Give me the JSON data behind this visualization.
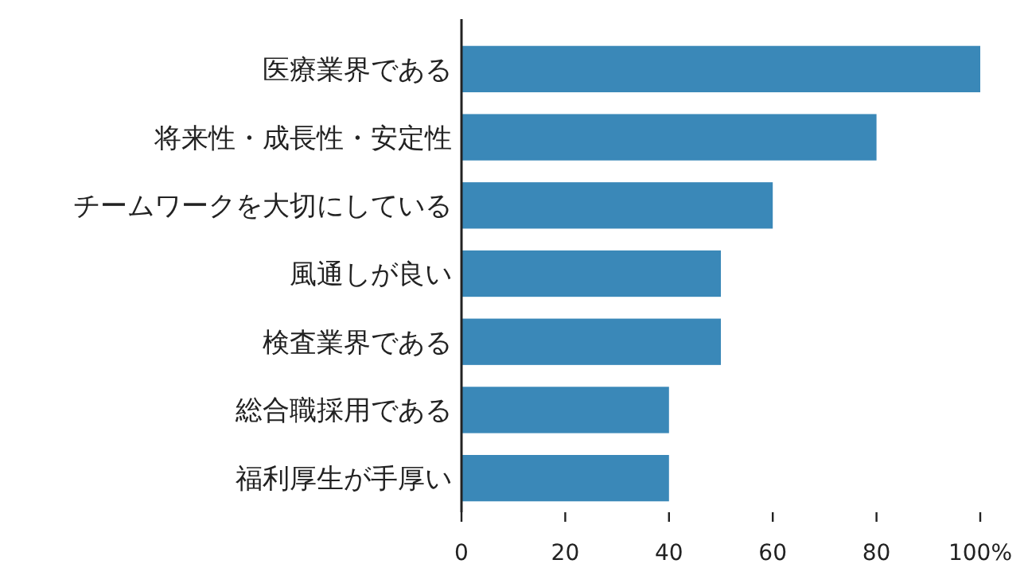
{
  "chart_data": {
    "type": "bar",
    "orientation": "horizontal",
    "categories": [
      "医療業界である",
      "将来性・成長性・安定性",
      "チームワークを大切にしている",
      "風通しが良い",
      "検査業界である",
      "総合職採用である",
      "福利厚生が手厚い"
    ],
    "values": [
      100,
      80,
      60,
      50,
      50,
      40,
      40
    ],
    "color": "#3a88b8",
    "xlim": [
      0,
      100
    ],
    "xticks": [
      0,
      20,
      40,
      60,
      80,
      {
        "value": 100,
        "label": "100%"
      }
    ],
    "grid": false
  }
}
